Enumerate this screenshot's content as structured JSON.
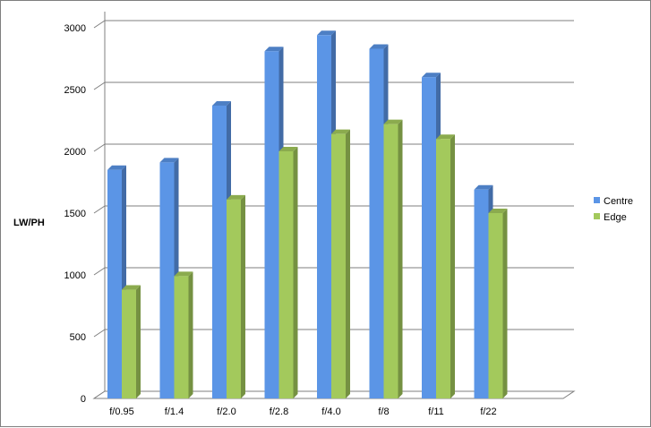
{
  "chart_data": {
    "type": "bar",
    "title": "",
    "xlabel": "",
    "ylabel": "LW/PH",
    "categories": [
      "f/0.95",
      "f/1.4",
      "f/2.0",
      "f/2.8",
      "f/4.0",
      "f/8",
      "f/11",
      "f/22"
    ],
    "series": [
      {
        "name": "Centre",
        "values": [
          1850,
          1910,
          2370,
          2810,
          2940,
          2830,
          2600,
          1690
        ],
        "color": "#5b95e6"
      },
      {
        "name": "Edge",
        "values": [
          880,
          990,
          1610,
          2000,
          2140,
          2220,
          2100,
          1500
        ],
        "color": "#a3c95c"
      }
    ],
    "ylim": [
      0,
      3000
    ],
    "yticks": [
      0,
      500,
      1000,
      1500,
      2000,
      2500,
      3000
    ],
    "grid": true,
    "legend": "right",
    "style": "3d-column"
  }
}
